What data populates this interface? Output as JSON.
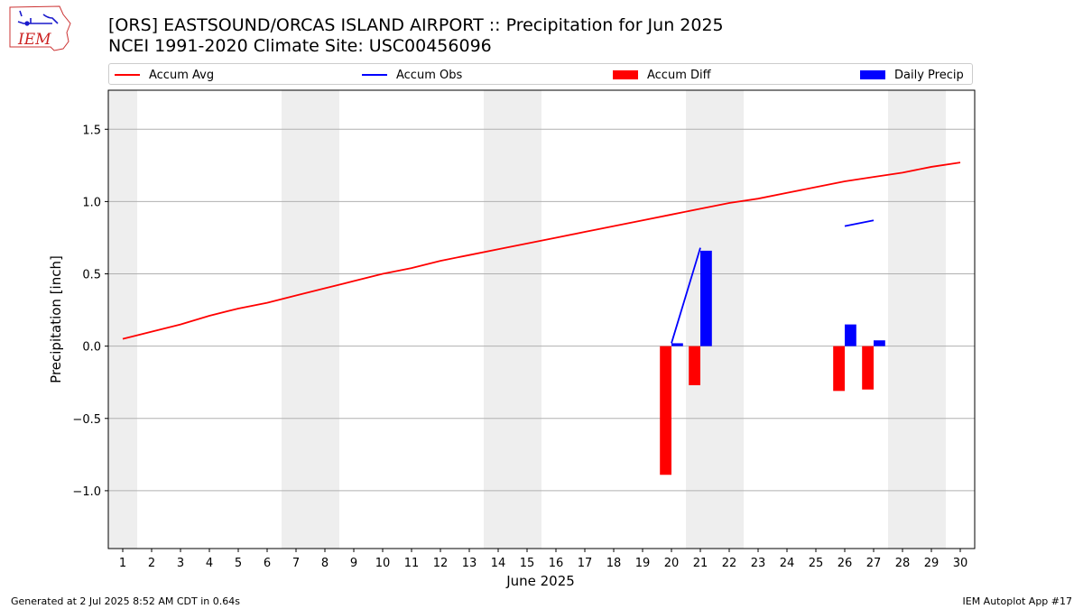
{
  "header": {
    "logo_text": "IEM",
    "title_line1": "[ORS] EASTSOUND/ORCAS ISLAND AIRPORT :: Precipitation for Jun 2025",
    "title_line2": "NCEI 1991-2020 Climate Site: USC00456096"
  },
  "legend": {
    "items": [
      {
        "label": "Accum Avg",
        "kind": "line",
        "color": "#ff0000"
      },
      {
        "label": "Accum Obs",
        "kind": "line",
        "color": "#0000ff"
      },
      {
        "label": "Accum Diff",
        "kind": "bar",
        "color": "#ff0000"
      },
      {
        "label": "Daily Precip",
        "kind": "bar",
        "color": "#0000ff"
      }
    ],
    "placement": "top, above plot, horizontal"
  },
  "footer": {
    "generated": "Generated at 2 Jul 2025 8:52 AM CDT in 0.64s",
    "app": "IEM Autoplot App #17"
  },
  "chart_data": {
    "type": "bar",
    "title": "[ORS] EASTSOUND/ORCAS ISLAND AIRPORT :: Precipitation for Jun 2025",
    "subtitle": "NCEI 1991-2020 Climate Site: USC00456096",
    "xlabel": "June 2025",
    "ylabel": "Precipitation [inch]",
    "xlim": [
      0.5,
      30.5
    ],
    "ylim": [
      -1.4,
      1.77
    ],
    "x_ticks": [
      1,
      2,
      3,
      4,
      5,
      6,
      7,
      8,
      9,
      10,
      11,
      12,
      13,
      14,
      15,
      16,
      17,
      18,
      19,
      20,
      21,
      22,
      23,
      24,
      25,
      26,
      27,
      28,
      29,
      30
    ],
    "y_ticks": [
      -1.0,
      -0.5,
      0.0,
      0.5,
      1.0,
      1.5
    ],
    "y_tick_labels": [
      "−1.0",
      "−0.5",
      "0.0",
      "0.5",
      "1.0",
      "1.5"
    ],
    "grid": "horizontal",
    "weekend_shading": [
      [
        0.5,
        1.5
      ],
      [
        6.5,
        8.5
      ],
      [
        13.5,
        15.5
      ],
      [
        20.5,
        22.5
      ],
      [
        27.5,
        29.5
      ]
    ],
    "shading_color": "#eeeeee",
    "series": [
      {
        "name": "Accum Avg",
        "kind": "line",
        "color": "#ff0000",
        "x": [
          1,
          2,
          3,
          4,
          5,
          6,
          7,
          8,
          9,
          10,
          11,
          12,
          13,
          14,
          15,
          16,
          17,
          18,
          19,
          20,
          21,
          22,
          23,
          24,
          25,
          26,
          27,
          28,
          29,
          30
        ],
        "values": [
          0.05,
          0.1,
          0.15,
          0.21,
          0.26,
          0.3,
          0.35,
          0.4,
          0.45,
          0.5,
          0.54,
          0.59,
          0.63,
          0.67,
          0.71,
          0.75,
          0.79,
          0.83,
          0.87,
          0.91,
          0.95,
          0.99,
          1.02,
          1.06,
          1.1,
          1.14,
          1.17,
          1.2,
          1.24,
          1.27
        ]
      },
      {
        "name": "Accum Obs",
        "kind": "line",
        "color": "#0000ff",
        "segments": [
          {
            "x": [
              20,
              21
            ],
            "values": [
              0.02,
              0.68
            ]
          },
          {
            "x": [
              26,
              27
            ],
            "values": [
              0.83,
              0.87
            ]
          }
        ]
      },
      {
        "name": "Accum Diff",
        "kind": "bar",
        "color": "#ff0000",
        "offset": -0.2,
        "x": [
          20,
          21,
          26,
          27
        ],
        "values": [
          -0.89,
          -0.27,
          -0.31,
          -0.3
        ]
      },
      {
        "name": "Daily Precip",
        "kind": "bar",
        "color": "#0000ff",
        "offset": 0.2,
        "x": [
          20,
          21,
          26,
          27
        ],
        "values": [
          0.02,
          0.66,
          0.15,
          0.04
        ]
      }
    ]
  }
}
